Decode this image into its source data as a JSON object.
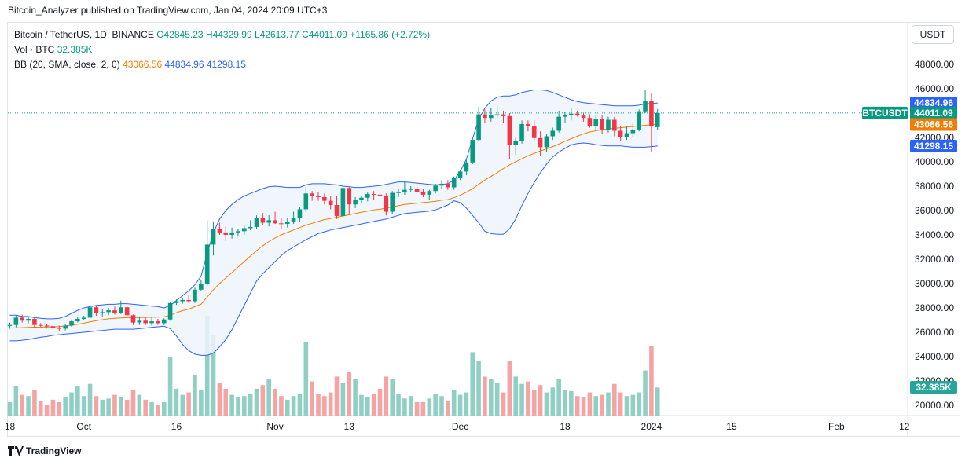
{
  "publish_line": "Bitcoin_Analyzer published on TradingView.com, Jan 04, 2024 20:09 UTC+3",
  "legend": {
    "symbol": "Bitcoin / TetherUS, 1D, BINANCE",
    "open": "O42845.23",
    "high": "H44329.99",
    "low": "L42613.77",
    "close": "C44011.09",
    "change": "+1165.86 (+2.72%)",
    "vol_label": "Vol · BTC",
    "vol_value": "32.385K",
    "bb_label": "BB (20, SMA, close, 2, 0)",
    "bb_basis": "43066.56",
    "bb_upper": "44834.96",
    "bb_lower": "41298.15"
  },
  "currency_button": "USDT",
  "price_tags": {
    "upper": "44834.96",
    "symbol": "BTCUSDT",
    "close": "44011.09",
    "basis": "43066.56",
    "lower": "41298.15",
    "volume": "32.385K"
  },
  "footer": "TradingView",
  "colors": {
    "up": "#089981",
    "down": "#f23645",
    "vol_up": "#8fcfc4",
    "vol_down": "#f5a3a3",
    "band": "#2962ff",
    "basis": "#f57c00",
    "band_fill": "#eef4fc"
  },
  "chart_data": {
    "type": "candlestick",
    "title": "Bitcoin / TetherUS, 1D, BINANCE",
    "y_ticks": [
      20000,
      22000,
      24000,
      26000,
      28000,
      30000,
      32000,
      34000,
      36000,
      38000,
      40000,
      42000,
      44000,
      46000,
      48000
    ],
    "y_tick_labels": [
      "20000.00",
      "22000.00",
      "24000.00",
      "26000.00",
      "28000.00",
      "30000.00",
      "32000.00",
      "34000.00",
      "36000.00",
      "38000.00",
      "40000.00",
      "42000.00",
      "44000.00",
      "46000.00",
      "48000.00"
    ],
    "x_tick_labels": [
      {
        "label": "18",
        "index": 0
      },
      {
        "label": "Oct",
        "index": 12
      },
      {
        "label": "16",
        "index": 27
      },
      {
        "label": "Nov",
        "index": 43
      },
      {
        "label": "13",
        "index": 55
      },
      {
        "label": "Dec",
        "index": 73
      },
      {
        "label": "18",
        "index": 90
      },
      {
        "label": "2024",
        "index": 104
      },
      {
        "label": "15",
        "index": 117
      },
      {
        "label": "Feb",
        "index": 134
      },
      {
        "label": "12",
        "index": 145
      }
    ],
    "candles": [
      [
        26530,
        26800,
        26300,
        26600,
        11
      ],
      [
        26600,
        27400,
        26400,
        27200,
        24
      ],
      [
        27200,
        27450,
        26800,
        26950,
        17
      ],
      [
        26950,
        27300,
        26750,
        27100,
        16
      ],
      [
        27100,
        27200,
        26350,
        26600,
        21
      ],
      [
        26600,
        26750,
        26450,
        26550,
        12
      ],
      [
        26550,
        26700,
        26300,
        26500,
        9
      ],
      [
        26500,
        26650,
        26200,
        26350,
        13
      ],
      [
        26350,
        26550,
        26100,
        26300,
        11
      ],
      [
        26300,
        26650,
        26150,
        26550,
        15
      ],
      [
        26550,
        27050,
        26450,
        26900,
        19
      ],
      [
        26900,
        27250,
        26800,
        27100,
        24
      ],
      [
        27100,
        27350,
        27000,
        27200,
        16
      ],
      [
        27200,
        28500,
        27050,
        28050,
        26
      ],
      [
        28050,
        28150,
        27350,
        27550,
        16
      ],
      [
        27550,
        27900,
        27300,
        27650,
        13
      ],
      [
        27650,
        28000,
        27400,
        27800,
        14
      ],
      [
        27800,
        28100,
        27450,
        27550,
        17
      ],
      [
        27550,
        28600,
        27500,
        28050,
        15
      ],
      [
        28050,
        28200,
        27300,
        27400,
        13
      ],
      [
        27400,
        27450,
        26600,
        26800,
        21
      ],
      [
        26800,
        27300,
        26600,
        26950,
        17
      ],
      [
        26950,
        27200,
        26600,
        26750,
        13
      ],
      [
        26750,
        27250,
        26550,
        26900,
        11
      ],
      [
        26900,
        27100,
        26600,
        26750,
        9
      ],
      [
        26750,
        27150,
        26600,
        27050,
        11
      ],
      [
        27050,
        28500,
        26950,
        28400,
        48
      ],
      [
        28400,
        28700,
        28250,
        28550,
        22
      ],
      [
        28550,
        28800,
        28350,
        28650,
        17
      ],
      [
        28650,
        29100,
        28400,
        28550,
        19
      ],
      [
        28550,
        29650,
        28400,
        29500,
        33
      ],
      [
        29500,
        30300,
        29400,
        29950,
        21
      ],
      [
        29950,
        35200,
        29800,
        33200,
        82
      ],
      [
        33200,
        35100,
        32300,
        34500,
        66
      ],
      [
        34500,
        35000,
        34000,
        34200,
        27
      ],
      [
        34200,
        34700,
        33500,
        34000,
        22
      ],
      [
        34000,
        34600,
        33700,
        34200,
        17
      ],
      [
        34200,
        34500,
        33900,
        34300,
        15
      ],
      [
        34300,
        34800,
        34000,
        34550,
        16
      ],
      [
        34550,
        35200,
        34400,
        34650,
        18
      ],
      [
        34650,
        35600,
        34500,
        35400,
        22
      ],
      [
        35400,
        35800,
        34800,
        35000,
        25
      ],
      [
        35000,
        35600,
        34700,
        35200,
        30
      ],
      [
        35200,
        35900,
        34900,
        34950,
        22
      ],
      [
        34950,
        35400,
        34500,
        34900,
        16
      ],
      [
        34900,
        35400,
        34600,
        35050,
        13
      ],
      [
        35050,
        35900,
        34900,
        35400,
        16
      ],
      [
        35400,
        36300,
        35100,
        36100,
        18
      ],
      [
        36100,
        37900,
        35900,
        37400,
        60
      ],
      [
        37400,
        37600,
        36800,
        37200,
        28
      ],
      [
        37200,
        37500,
        36800,
        37100,
        18
      ],
      [
        37100,
        37400,
        36500,
        36800,
        16
      ],
      [
        36800,
        37200,
        36100,
        36450,
        19
      ],
      [
        36450,
        37200,
        35300,
        35550,
        32
      ],
      [
        35550,
        38000,
        35400,
        37850,
        27
      ],
      [
        37850,
        37900,
        35700,
        36500,
        36
      ],
      [
        36500,
        37100,
        36200,
        36850,
        30
      ],
      [
        36850,
        37200,
        36600,
        37050,
        17
      ],
      [
        37050,
        37500,
        36750,
        37350,
        15
      ],
      [
        37350,
        37600,
        36900,
        37300,
        18
      ],
      [
        37300,
        37700,
        36300,
        37200,
        22
      ],
      [
        37200,
        37400,
        35600,
        35900,
        32
      ],
      [
        35900,
        37600,
        35700,
        37450,
        30
      ],
      [
        37450,
        37800,
        37100,
        37500,
        18
      ],
      [
        37500,
        38400,
        37300,
        37700,
        14
      ],
      [
        37700,
        38000,
        37500,
        37800,
        16
      ],
      [
        37800,
        38100,
        37450,
        37550,
        11
      ],
      [
        37550,
        37750,
        37100,
        37300,
        11
      ],
      [
        37300,
        37700,
        36900,
        37600,
        14
      ],
      [
        37600,
        38200,
        37400,
        38050,
        18
      ],
      [
        38050,
        38500,
        37800,
        38200,
        16
      ],
      [
        38200,
        38500,
        37700,
        37900,
        12
      ],
      [
        37900,
        38800,
        37700,
        38700,
        21
      ],
      [
        38700,
        39300,
        38500,
        39200,
        17
      ],
      [
        39200,
        40200,
        38900,
        39950,
        19
      ],
      [
        39950,
        41900,
        39800,
        41800,
        52
      ],
      [
        41800,
        44500,
        41700,
        43900,
        45
      ],
      [
        43900,
        44300,
        43200,
        43600,
        32
      ],
      [
        43600,
        44400,
        43300,
        43800,
        30
      ],
      [
        43800,
        44600,
        43600,
        43900,
        27
      ],
      [
        43900,
        44200,
        43200,
        43750,
        19
      ],
      [
        43750,
        44000,
        40200,
        41400,
        45
      ],
      [
        41400,
        42000,
        40600,
        41700,
        32
      ],
      [
        41700,
        43400,
        41500,
        43100,
        26
      ],
      [
        43100,
        43400,
        42500,
        42900,
        28
      ],
      [
        42900,
        43400,
        41700,
        41950,
        21
      ],
      [
        41950,
        42500,
        40500,
        41200,
        25
      ],
      [
        41200,
        42300,
        40800,
        42100,
        19
      ],
      [
        42100,
        42800,
        41800,
        42550,
        23
      ],
      [
        42550,
        44200,
        42400,
        43700,
        30
      ],
      [
        43700,
        44100,
        43200,
        43850,
        21
      ],
      [
        43850,
        44400,
        43400,
        43950,
        20
      ],
      [
        43950,
        44200,
        43700,
        43800,
        16
      ],
      [
        43800,
        44000,
        43300,
        43600,
        15
      ],
      [
        43600,
        43900,
        42800,
        42900,
        19
      ],
      [
        42900,
        43800,
        42600,
        43500,
        16
      ],
      [
        43500,
        43800,
        42300,
        42650,
        17
      ],
      [
        42650,
        43700,
        42400,
        43450,
        19
      ],
      [
        43450,
        43700,
        42100,
        42550,
        26
      ],
      [
        42550,
        42900,
        41700,
        42000,
        19
      ],
      [
        42000,
        42900,
        41800,
        42350,
        16
      ],
      [
        42350,
        43200,
        42000,
        42650,
        17
      ],
      [
        42650,
        44300,
        42500,
        44150,
        19
      ],
      [
        44150,
        45900,
        44000,
        45000,
        37
      ],
      [
        45000,
        45600,
        40800,
        42900,
        57
      ],
      [
        42850,
        44330,
        42610,
        44010,
        23
      ]
    ],
    "bb_upper": [
      27400,
      27400,
      27300,
      27300,
      27200,
      27150,
      27100,
      27100,
      27150,
      27300,
      27550,
      27800,
      28000,
      28100,
      28200,
      28250,
      28300,
      28300,
      28350,
      28350,
      28300,
      28250,
      28200,
      28150,
      28100,
      28000,
      28200,
      28600,
      29000,
      29400,
      29900,
      30600,
      32500,
      34200,
      35300,
      36000,
      36500,
      36900,
      37200,
      37400,
      37600,
      37800,
      37950,
      38000,
      37950,
      37900,
      37900,
      37900,
      38100,
      38200,
      38200,
      38200,
      38150,
      38100,
      38000,
      37950,
      37900,
      37900,
      37950,
      38000,
      38050,
      38150,
      38250,
      38350,
      38350,
      38300,
      38250,
      38200,
      38150,
      38100,
      38150,
      38200,
      38500,
      39200,
      40200,
      41900,
      43500,
      44400,
      45000,
      45300,
      45400,
      45400,
      45500,
      45700,
      45800,
      45900,
      45900,
      45850,
      45700,
      45500,
      45300,
      45100,
      44950,
      44850,
      44800,
      44750,
      44700,
      44650,
      44600,
      44600,
      44600,
      44600,
      44650,
      44750,
      44800,
      44835
    ],
    "bb_basis": [
      26350,
      26360,
      26380,
      26400,
      26420,
      26420,
      26430,
      26450,
      26470,
      26520,
      26580,
      26660,
      26740,
      26850,
      26950,
      27030,
      27100,
      27150,
      27180,
      27200,
      27200,
      27210,
      27220,
      27230,
      27240,
      27270,
      27400,
      27600,
      27780,
      27900,
      28100,
      28300,
      28900,
      29500,
      30000,
      30450,
      30900,
      31350,
      31800,
      32250,
      32700,
      33100,
      33450,
      33750,
      34000,
      34200,
      34400,
      34600,
      34800,
      34950,
      35100,
      35250,
      35350,
      35450,
      35550,
      35650,
      35750,
      35850,
      35950,
      36050,
      36100,
      36200,
      36300,
      36400,
      36500,
      36550,
      36600,
      36650,
      36700,
      36750,
      36850,
      36900,
      37050,
      37250,
      37500,
      37800,
      38150,
      38500,
      38800,
      39100,
      39450,
      39750,
      40000,
      40250,
      40500,
      40700,
      40900,
      41050,
      41250,
      41450,
      41700,
      41900,
      42100,
      42300,
      42450,
      42550,
      42650,
      42700,
      42750,
      42800,
      42850,
      42900,
      42950,
      43000,
      43030,
      43066
    ],
    "bb_lower": [
      25300,
      25300,
      25350,
      25400,
      25500,
      25600,
      25650,
      25750,
      25800,
      25850,
      25900,
      25950,
      26000,
      26050,
      26100,
      26150,
      26200,
      26250,
      26250,
      26250,
      26250,
      26300,
      26350,
      26400,
      26450,
      26500,
      26300,
      25700,
      25000,
      24500,
      24200,
      24100,
      24100,
      24300,
      24800,
      25400,
      26200,
      27200,
      28200,
      29200,
      30200,
      30800,
      31300,
      31800,
      32300,
      32700,
      33000,
      33300,
      33600,
      33850,
      34100,
      34250,
      34400,
      34500,
      34600,
      34700,
      34800,
      34900,
      35000,
      35100,
      35200,
      35300,
      35450,
      35600,
      35750,
      35800,
      35850,
      35900,
      35950,
      36050,
      36250,
      36450,
      36800,
      36650,
      36200,
      35600,
      35000,
      34300,
      34100,
      34050,
      34050,
      34500,
      35300,
      36400,
      37400,
      38300,
      39100,
      39800,
      40400,
      40800,
      41100,
      41400,
      41500,
      41550,
      41500,
      41400,
      41350,
      41300,
      41300,
      41300,
      41250,
      41200,
      41200,
      41200,
      41250,
      41298
    ]
  }
}
